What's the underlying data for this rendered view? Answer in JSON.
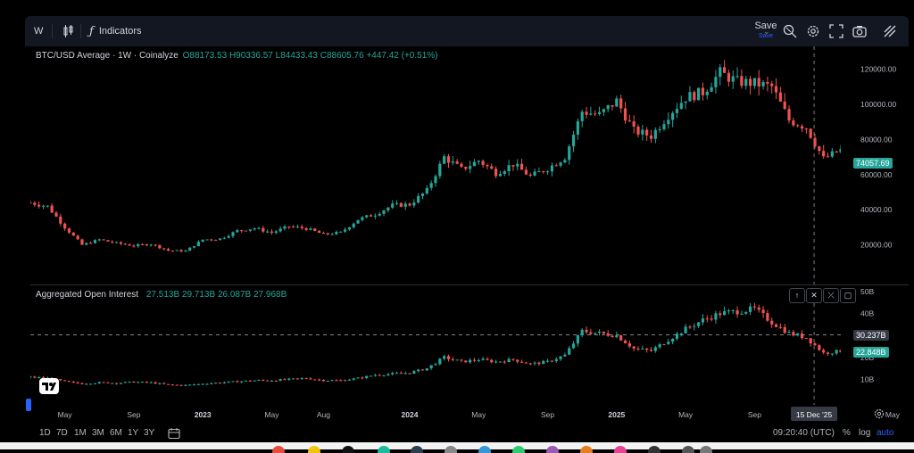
{
  "toolbar": {
    "interval": "W",
    "indicators_label": "Indicators",
    "save_label": "Save",
    "save_sub": "Save"
  },
  "main_legend": {
    "symbol": "BTC/USD Average · 1W · Coinalyze",
    "open": "O88173.53",
    "high": "H90336.57",
    "low": "L84433.43",
    "close": "C88605.76",
    "change": "+447.42 (+0.51%)"
  },
  "oi_legend": {
    "title": "Aggregated Open Interest",
    "v1": "27.513B",
    "v2": "29.713B",
    "v3": "26.087B",
    "v4": "27.968B"
  },
  "price_scale": {
    "ticks": [
      "120000.00",
      "100000.00",
      "80000.00",
      "60000.00",
      "40000.00",
      "20000.00"
    ],
    "current_label": "74057.69",
    "current_color": "#26a69a"
  },
  "oi_scale": {
    "ticks": [
      "50B",
      "40B",
      "20B",
      "10B"
    ],
    "crosshair_label": "30.237B",
    "current_label": "22.848B"
  },
  "time_axis": {
    "labels": [
      "May",
      "Sep",
      "2023",
      "May",
      "Aug",
      "2024",
      "May",
      "Sep",
      "2025",
      "May",
      "Sep",
      "May"
    ],
    "crosshair_label": "15 Dec '25"
  },
  "bottom_bar": {
    "ranges": [
      "1D",
      "7D",
      "1M",
      "3M",
      "6M",
      "1Y",
      "3Y"
    ],
    "clock": "09:20:40 (UTC)",
    "percent": "%",
    "log": "log",
    "auto": "auto"
  },
  "colors": {
    "up": "#26a69a",
    "down": "#ef5350",
    "accent": "#2962ff"
  },
  "chart_data": [
    {
      "type": "candlestick",
      "title": "BTC/USD Average · 1W · Coinalyze",
      "x_range": [
        "2022-03",
        "2026-02"
      ],
      "ylim": [
        0,
        130000
      ],
      "y_ticks": [
        20000,
        40000,
        60000,
        80000,
        100000,
        120000
      ],
      "x": [
        "2022-03",
        "2022-04",
        "2022-05",
        "2022-06",
        "2022-07",
        "2022-08",
        "2022-09",
        "2022-10",
        "2022-11",
        "2022-12",
        "2023-01",
        "2023-02",
        "2023-03",
        "2023-04",
        "2023-05",
        "2023-06",
        "2023-07",
        "2023-08",
        "2023-09",
        "2023-10",
        "2023-11",
        "2023-12",
        "2024-01",
        "2024-02",
        "2024-03",
        "2024-04",
        "2024-05",
        "2024-06",
        "2024-07",
        "2024-08",
        "2024-09",
        "2024-10",
        "2024-11",
        "2024-12",
        "2025-01",
        "2025-02",
        "2025-03",
        "2025-04",
        "2025-05",
        "2025-06",
        "2025-07",
        "2025-08",
        "2025-09",
        "2025-10",
        "2025-11",
        "2025-12",
        "2026-01",
        "2026-02"
      ],
      "close": [
        44000,
        42000,
        30000,
        20000,
        23000,
        21000,
        19500,
        20500,
        16800,
        16500,
        23000,
        23500,
        28000,
        29500,
        27000,
        30500,
        29300,
        26000,
        27000,
        34500,
        37500,
        42500,
        43000,
        51000,
        70000,
        63000,
        68000,
        61000,
        66000,
        59000,
        63500,
        70000,
        96000,
        94000,
        102000,
        85000,
        82000,
        94000,
        104000,
        107000,
        118000,
        113000,
        112000,
        110000,
        91000,
        87000,
        69000,
        74057
      ],
      "last": 74057.69,
      "crosshair_x": "2025-12-15"
    },
    {
      "type": "candlestick",
      "title": "Aggregated Open Interest",
      "unit": "B",
      "ylim": [
        0,
        52
      ],
      "y_ticks": [
        10,
        20,
        40,
        50
      ],
      "x": [
        "2022-03",
        "2022-04",
        "2022-05",
        "2022-06",
        "2022-07",
        "2022-08",
        "2022-09",
        "2022-10",
        "2022-11",
        "2022-12",
        "2023-01",
        "2023-02",
        "2023-03",
        "2023-04",
        "2023-05",
        "2023-06",
        "2023-07",
        "2023-08",
        "2023-09",
        "2023-10",
        "2023-11",
        "2023-12",
        "2024-01",
        "2024-02",
        "2024-03",
        "2024-04",
        "2024-05",
        "2024-06",
        "2024-07",
        "2024-08",
        "2024-09",
        "2024-10",
        "2024-11",
        "2024-12",
        "2025-01",
        "2025-02",
        "2025-03",
        "2025-04",
        "2025-05",
        "2025-06",
        "2025-07",
        "2025-08",
        "2025-09",
        "2025-10",
        "2025-11",
        "2025-12",
        "2026-01",
        "2026-02"
      ],
      "close": [
        11,
        10.5,
        9,
        8,
        8.5,
        8.3,
        8.8,
        8.5,
        7.5,
        7.3,
        8,
        8.5,
        9,
        9.5,
        9.5,
        10,
        10.5,
        9.5,
        9.5,
        10.5,
        12,
        12.5,
        13,
        15,
        20,
        18,
        19,
        18,
        19,
        17,
        18,
        21,
        32,
        31,
        30,
        24,
        23,
        28,
        33,
        37,
        40,
        41,
        42,
        36,
        31,
        29,
        22,
        22.848
      ],
      "crosshair_value": 30.237,
      "last": 22.848
    }
  ]
}
